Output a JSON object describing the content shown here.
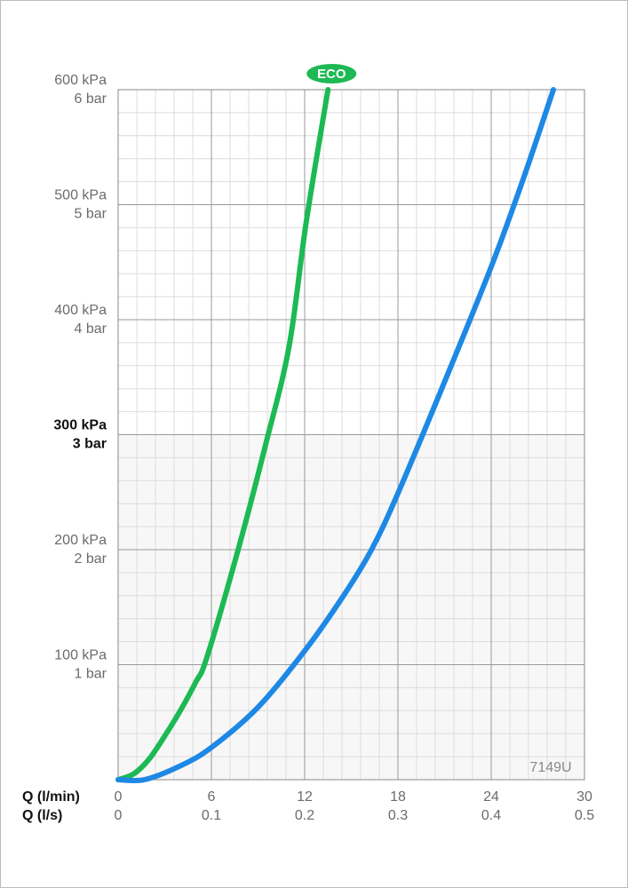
{
  "chart_data": {
    "type": "line",
    "xlabel": "Q (l/min)",
    "x2label": "Q (l/s)",
    "xlim": [
      0,
      30
    ],
    "xticks": [
      0,
      6,
      12,
      18,
      24,
      30
    ],
    "x2lim": [
      0,
      0.5
    ],
    "x2ticks": [
      0,
      0.1,
      0.2,
      0.3,
      0.4,
      0.5
    ],
    "ylim": [
      0,
      600
    ],
    "yticks": [
      {
        "value": 100,
        "label": "100 kPa"
      },
      {
        "value": 200,
        "label": "200 kPa"
      },
      {
        "value": 300,
        "label": "300 kPa"
      },
      {
        "value": 400,
        "label": "400 kPa"
      },
      {
        "value": 500,
        "label": "500 kPa"
      },
      {
        "value": 600,
        "label": "600 kPa"
      }
    ],
    "y_secondary_labels": [
      "1 bar",
      "2 bar",
      "3 bar",
      "4 bar",
      "5 bar",
      "6 bar"
    ],
    "bold_ytick": 300,
    "grid": true,
    "annotation": "7149U",
    "series": [
      {
        "name": "ECO",
        "color": "#1db954",
        "x": [
          0,
          1,
          2,
          3,
          4,
          5,
          5.7,
          7.7,
          9.5,
          11,
          12.1,
          13.5
        ],
        "values": [
          0,
          5,
          18,
          38,
          60,
          85,
          106,
          199,
          292,
          377,
          485,
          600
        ]
      },
      {
        "color": "#1e88e5",
        "x": [
          0,
          1.7,
          4,
          6,
          9,
          12,
          14.5,
          16.3,
          18,
          21,
          24,
          26,
          28
        ],
        "values": [
          0,
          0,
          12,
          28,
          63,
          112,
          160,
          200,
          249,
          346,
          446,
          520,
          600
        ]
      }
    ]
  }
}
